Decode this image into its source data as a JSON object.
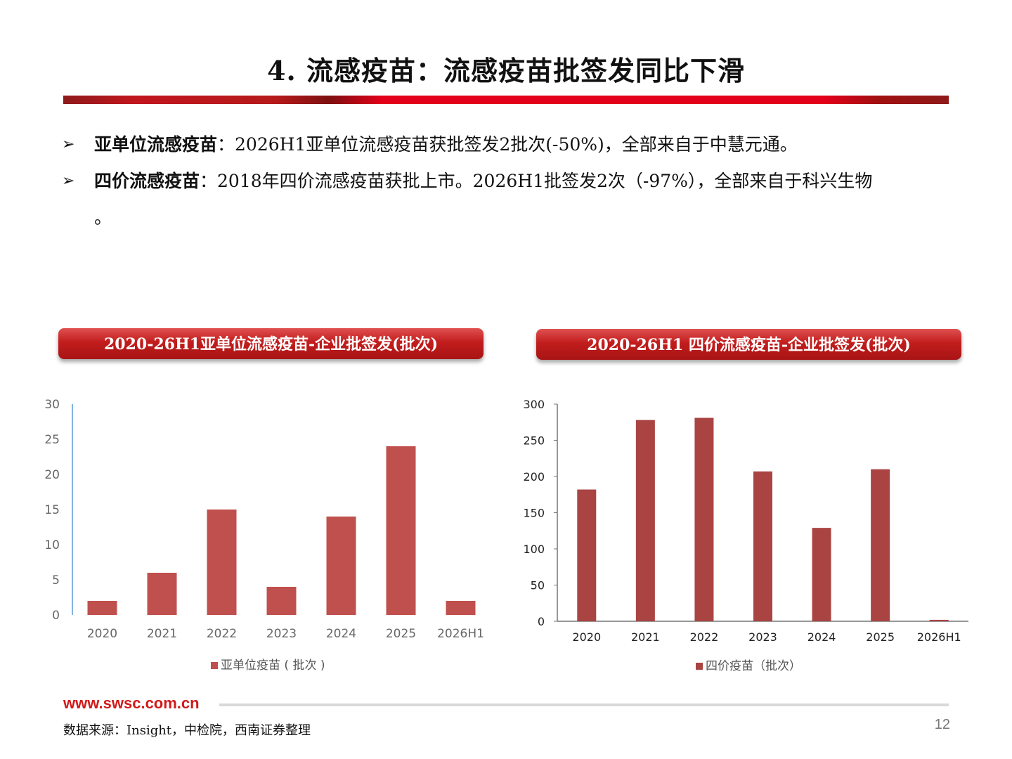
{
  "slide": {
    "title": "4. 流感疫苗：流感疫苗批签发同比下滑",
    "bullets": [
      {
        "marker": "➢",
        "bold": "亚单位流感疫苗",
        "text": "：2026H1亚单位流感疫苗获批签发2批次(-50%)，全部来自于中慧元通。",
        "cont": ""
      },
      {
        "marker": "➢",
        "bold": "四价流感疫苗",
        "text": "：2018年四价流感疫苗获批上市。2026H1批签发2次（-97%），全部来自于科兴生物",
        "cont": "。"
      }
    ],
    "footer_url": "www.swsc.com.cn",
    "source": "数据来源：Insight，中检院，西南证券整理",
    "page_number": "12"
  },
  "colors": {
    "bar": "#c0504d",
    "bar_dark": "#a94442",
    "accent": "#e2001a"
  },
  "chart_data": [
    {
      "type": "bar",
      "header": "2020-26H1亚单位流感疫苗-企业批签发(批次)",
      "categories": [
        "2020",
        "2021",
        "2022",
        "2023",
        "2024",
        "2025",
        "2026H1"
      ],
      "series": [
        {
          "name": "亚单位疫苗 ( 批次 )",
          "values": [
            2,
            6,
            15,
            4,
            14,
            24,
            2
          ]
        }
      ],
      "ylim": [
        0,
        30
      ],
      "yticks": [
        0,
        5,
        10,
        15,
        20,
        25,
        30
      ],
      "legend": "bottom",
      "grid": false
    },
    {
      "type": "bar",
      "header": "2020-26H1 四价流感疫苗-企业批签发(批次)",
      "categories": [
        "2020",
        "2021",
        "2022",
        "2023",
        "2024",
        "2025",
        "2026H1"
      ],
      "series": [
        {
          "name": "四价疫苗（批次）",
          "values": [
            182,
            278,
            281,
            207,
            129,
            210,
            2
          ]
        }
      ],
      "ylim": [
        0,
        300
      ],
      "yticks": [
        0,
        50,
        100,
        150,
        200,
        250,
        300
      ],
      "legend": "bottom",
      "grid": false
    }
  ]
}
